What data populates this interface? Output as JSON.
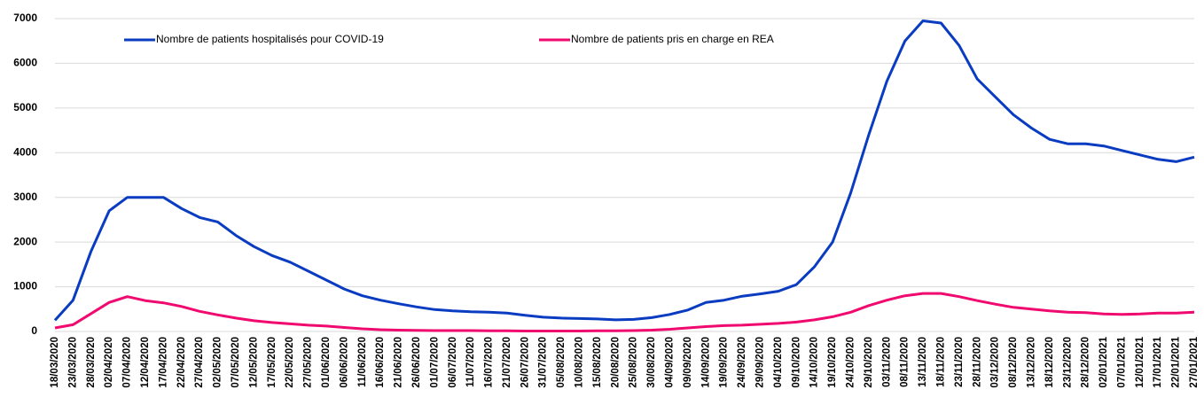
{
  "chart_data": {
    "type": "line",
    "categories": [
      "18/03/2020",
      "23/03/2020",
      "28/03/2020",
      "02/04/2020",
      "07/04/2020",
      "12/04/2020",
      "17/04/2020",
      "22/04/2020",
      "27/04/2020",
      "02/05/2020",
      "07/05/2020",
      "12/05/2020",
      "17/05/2020",
      "22/05/2020",
      "27/05/2020",
      "01/06/2020",
      "06/06/2020",
      "11/06/2020",
      "16/06/2020",
      "21/06/2020",
      "26/06/2020",
      "01/07/2020",
      "06/07/2020",
      "11/07/2020",
      "16/07/2020",
      "21/07/2020",
      "26/07/2020",
      "31/07/2020",
      "05/08/2020",
      "10/08/2020",
      "15/08/2020",
      "20/08/2020",
      "25/08/2020",
      "30/08/2020",
      "04/09/2020",
      "09/09/2020",
      "14/09/2020",
      "19/09/2020",
      "24/09/2020",
      "29/09/2020",
      "04/10/2020",
      "09/10/2020",
      "14/10/2020",
      "19/10/2020",
      "24/10/2020",
      "29/10/2020",
      "03/11/2020",
      "08/11/2020",
      "13/11/2020",
      "18/11/2020",
      "23/11/2020",
      "28/11/2020",
      "03/12/2020",
      "08/12/2020",
      "13/12/2020",
      "18/12/2020",
      "23/12/2020",
      "28/12/2020",
      "02/01/2021",
      "07/01/2021",
      "12/01/2021",
      "17/01/2021",
      "22/01/2021",
      "27/01/2021"
    ],
    "series": [
      {
        "name": "Nombre de patients hospitalisés pour COVID-19",
        "color": "#0a3cc2",
        "values": [
          250,
          700,
          1800,
          2700,
          3000,
          3000,
          3000,
          2750,
          2550,
          2450,
          2150,
          1900,
          1700,
          1550,
          1350,
          1150,
          950,
          800,
          700,
          620,
          550,
          490,
          460,
          440,
          430,
          410,
          360,
          320,
          300,
          290,
          280,
          260,
          270,
          310,
          380,
          480,
          650,
          700,
          790,
          840,
          900,
          1050,
          1450,
          2000,
          3100,
          4400,
          5600,
          6500,
          6950,
          6900,
          6400,
          5650,
          5250,
          4850,
          4550,
          4300,
          4200,
          4200,
          4150,
          4050,
          3950,
          3850,
          3800,
          3900
        ]
      },
      {
        "name": "Nombre de patients pris en charge en REA",
        "color": "#f0096f",
        "values": [
          80,
          150,
          400,
          650,
          780,
          690,
          640,
          560,
          450,
          370,
          300,
          240,
          200,
          170,
          140,
          120,
          90,
          60,
          40,
          30,
          25,
          20,
          20,
          20,
          15,
          15,
          10,
          10,
          10,
          10,
          15,
          15,
          20,
          30,
          50,
          80,
          110,
          130,
          140,
          160,
          180,
          210,
          260,
          330,
          430,
          580,
          700,
          800,
          850,
          850,
          780,
          690,
          610,
          540,
          500,
          460,
          430,
          420,
          390,
          380,
          390,
          410,
          410,
          430
        ]
      }
    ],
    "ylim": [
      0,
      7000
    ],
    "yticks": [
      0,
      1000,
      2000,
      3000,
      4000,
      5000,
      6000,
      7000
    ],
    "grid": true
  }
}
